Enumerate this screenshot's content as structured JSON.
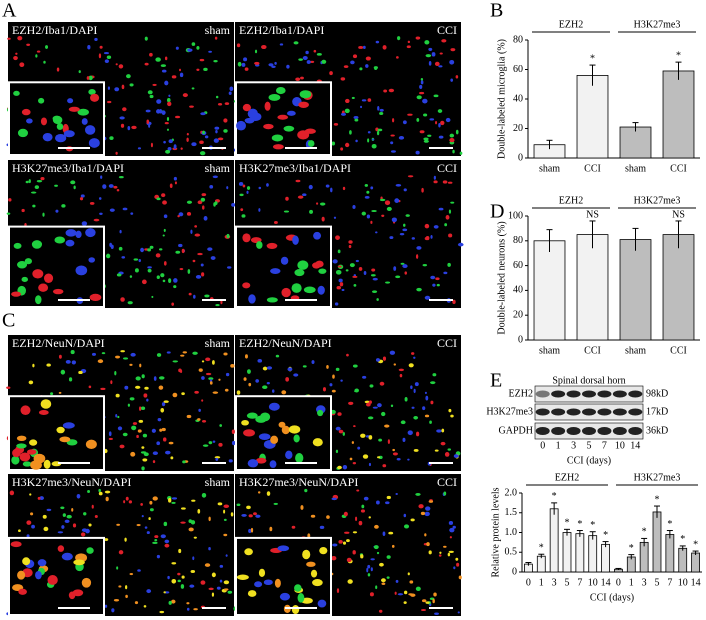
{
  "panel_labels": [
    "A",
    "B",
    "C",
    "D",
    "E"
  ],
  "micrographs": [
    {
      "stain": "EZH2/Iba1/DAPI",
      "group": "sham"
    },
    {
      "stain": "EZH2/Iba1/DAPI",
      "group": "CCI"
    },
    {
      "stain": "H3K27me3/Iba1/DAPI",
      "group": "sham"
    },
    {
      "stain": "H3K27me3/Iba1/DAPI",
      "group": "CCI"
    },
    {
      "stain": "EZH2/NeuN/DAPI",
      "group": "sham"
    },
    {
      "stain": "EZH2/NeuN/DAPI",
      "group": "CCI"
    },
    {
      "stain": "H3K27me3/NeuN/DAPI",
      "group": "sham"
    },
    {
      "stain": "H3K27me3/NeuN/DAPI",
      "group": "CCI"
    }
  ],
  "blot": {
    "title": "Spinal dorsal horn",
    "rows": [
      "EZH2",
      "H3K27me3",
      "GAPDH"
    ],
    "sizes": [
      "98kD",
      "17kD",
      "36kD"
    ],
    "lanes": [
      "0",
      "1",
      "3",
      "5",
      "7",
      "10",
      "14"
    ],
    "xlabel": "CCI (days)"
  },
  "chart_data": [
    {
      "type": "bar",
      "ylabel": "Double-labeled microglia (%)",
      "groups": [
        "EZH2",
        "H3K27me3"
      ],
      "categories": [
        "sham",
        "CCI",
        "sham",
        "CCI"
      ],
      "values": [
        9,
        56,
        21,
        59
      ],
      "errors": [
        3,
        7,
        3,
        6
      ],
      "annotations": [
        null,
        "*",
        null,
        "*"
      ],
      "group_colors": [
        "#f2f2f2",
        "#bdbdbd"
      ],
      "ylim": [
        0,
        80
      ],
      "yticks": [
        0,
        20,
        40,
        60,
        80
      ]
    },
    {
      "type": "bar",
      "ylabel": "Double-labeled neurons (%)",
      "groups": [
        "EZH2",
        "H3K27me3"
      ],
      "categories": [
        "sham",
        "CCI",
        "sham",
        "CCI"
      ],
      "values": [
        80,
        85,
        81,
        85
      ],
      "errors": [
        9,
        11,
        9,
        11
      ],
      "annotations": [
        null,
        "NS",
        null,
        "NS"
      ],
      "group_colors": [
        "#f2f2f2",
        "#bdbdbd"
      ],
      "ylim": [
        0,
        100
      ],
      "yticks": [
        0,
        20,
        40,
        60,
        80,
        100
      ]
    },
    {
      "type": "bar",
      "ylabel": "Relative protein levels",
      "xlabel": "CCI (days)",
      "groups": [
        "EZH2",
        "H3K27me3"
      ],
      "categories": [
        "0",
        "1",
        "3",
        "5",
        "7",
        "10",
        "14",
        "0",
        "1",
        "3",
        "5",
        "7",
        "10",
        "14"
      ],
      "values": [
        0.2,
        0.4,
        1.6,
        1.0,
        0.97,
        0.92,
        0.7,
        0.07,
        0.38,
        0.75,
        1.52,
        0.95,
        0.6,
        0.48
      ],
      "errors": [
        0.04,
        0.05,
        0.15,
        0.08,
        0.08,
        0.1,
        0.07,
        0.02,
        0.06,
        0.1,
        0.15,
        0.1,
        0.06,
        0.05
      ],
      "annotations": [
        null,
        "*",
        "*",
        "*",
        "*",
        "*",
        "*",
        null,
        "*",
        "*",
        "*",
        "*",
        "*",
        "*"
      ],
      "group_colors": [
        "#f2f2f2",
        "#bdbdbd"
      ],
      "ylim": [
        0,
        2
      ],
      "yticks": [
        0,
        0.5,
        {
          "value": 1,
          "label": "1.0"
        },
        1.5,
        {
          "value": 2,
          "label": "2.0"
        }
      ]
    }
  ]
}
